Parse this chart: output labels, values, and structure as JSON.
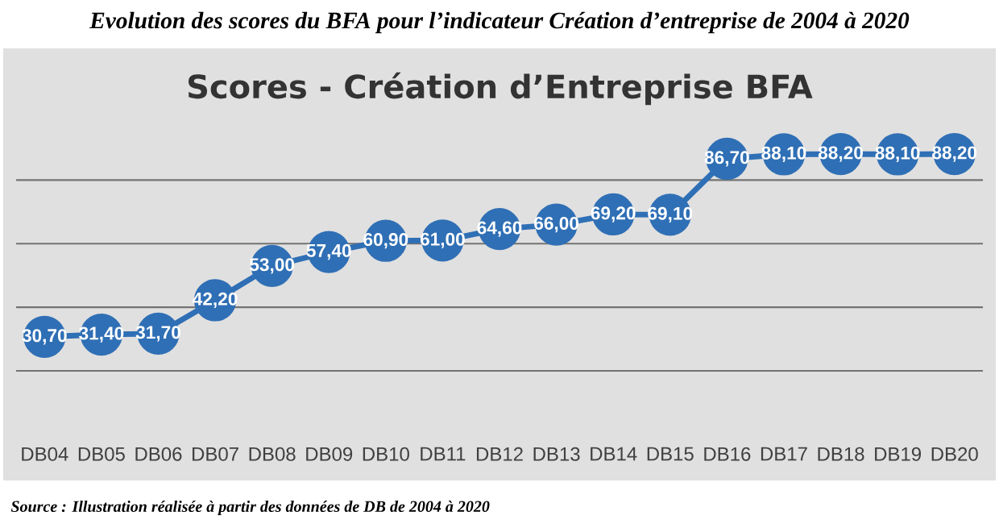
{
  "chart_data": {
    "type": "line",
    "title": "Evolution des scores du BFA pour l’indicateur Création d’entreprise de 2004  à 2020",
    "subtitle": "Scores - Création d’Entreprise BFA",
    "categories": [
      "DB04",
      "DB05",
      "DB06",
      "DB07",
      "DB08",
      "DB09",
      "DB10",
      "DB11",
      "DB12",
      "DB13",
      "DB14",
      "DB15",
      "DB16",
      "DB17",
      "DB18",
      "DB19",
      "DB20"
    ],
    "series": [
      {
        "color": "#2f6fb5",
        "values": [
          30.7,
          31.4,
          31.7,
          42.2,
          53.0,
          57.4,
          60.9,
          61.0,
          64.6,
          66.0,
          69.2,
          69.1,
          86.7,
          88.1,
          88.2,
          88.1,
          88.2
        ],
        "value_labels": [
          "30,70",
          "31,40",
          "31,70",
          "42,20",
          "53,00",
          "57,40",
          "60,90",
          "61,00",
          "64,60",
          "66,00",
          "69,20",
          "69,10",
          "86,70",
          "88,10",
          "88,20",
          "88,10",
          "88,20"
        ]
      }
    ],
    "yticks": [
      {
        "value": 20,
        "label": null
      },
      {
        "value": 40,
        "label": null
      },
      {
        "value": 60,
        "label": null
      },
      {
        "value": 80,
        "label": null
      }
    ],
    "grid": "y",
    "tick_labels": "x",
    "marker": "circle",
    "line_style": "solid",
    "annotations": [
      "Source : Illustration réalisée à partir des données de DB de 2004 à 2020"
    ]
  }
}
